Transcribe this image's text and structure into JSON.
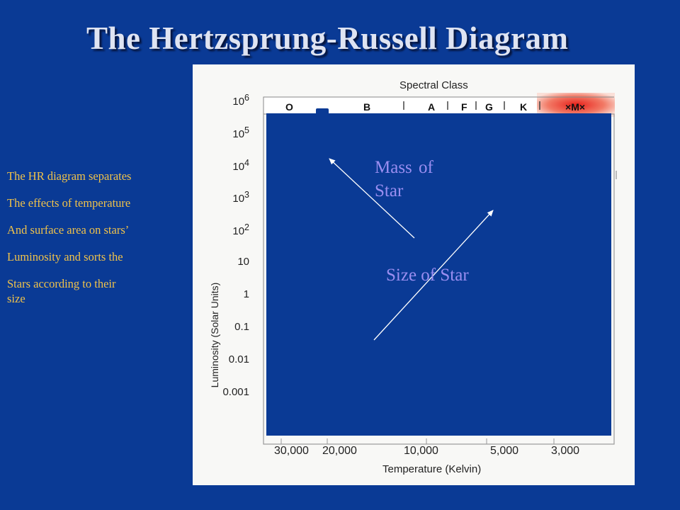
{
  "slide": {
    "title": "The Hertzsprung-Russell Diagram",
    "side_text": [
      "The HR diagram separates",
      "The effects of temperature",
      "And surface area on stars’",
      "Luminosity and sorts the",
      "Stars according to their",
      "size"
    ]
  },
  "diagram": {
    "spectral_title": "Spectral Class",
    "spectral_classes": [
      "O",
      "B",
      "A",
      "F",
      "G",
      "K",
      "M"
    ],
    "y_axis_title": "Luminosity (Solar Units)",
    "y_ticks": [
      "10^6",
      "10^5",
      "10^4",
      "10^3",
      "10^2",
      "10",
      "1",
      "0.1",
      "0.01",
      "0.001"
    ],
    "x_axis_title": "Temperature (Kelvin)",
    "x_ticks": [
      "30,000",
      "20,000",
      "10,000",
      "5,000",
      "3,000"
    ],
    "annotations": {
      "mass_label": "Mass of Star",
      "size_label": "Size of Star"
    }
  },
  "colors": {
    "background": "#0a3a95",
    "title": "#dfe4f2",
    "side_text": "#f0c24a",
    "annotation": "#9a8ef0",
    "arrow": "#ffffff",
    "m_band": "#e8201a"
  }
}
